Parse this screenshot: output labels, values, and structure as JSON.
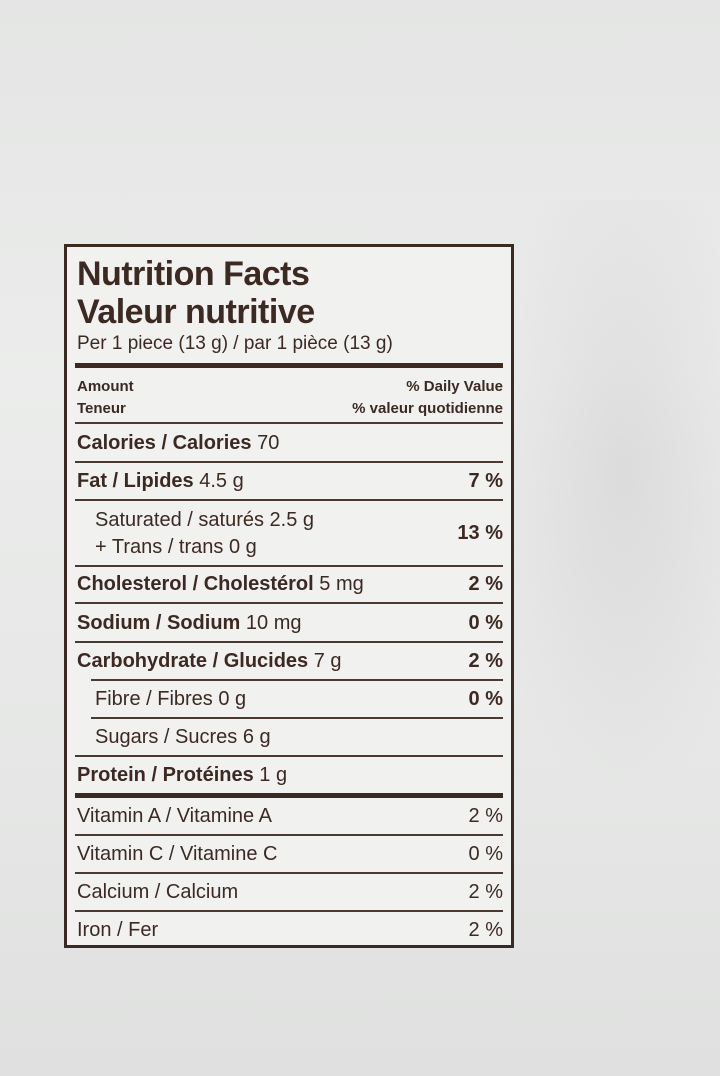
{
  "title_en": "Nutrition Facts",
  "title_fr": "Valeur nutritive",
  "serving": "Per 1 piece (13 g) / par 1 pièce (13 g)",
  "header": {
    "amount_en": "Amount",
    "amount_fr": "Teneur",
    "dv_en": "% Daily Value",
    "dv_fr": "% valeur quotidienne"
  },
  "calories": {
    "label": "Calories / Calories",
    "value": "70"
  },
  "fat": {
    "label": "Fat / Lipides",
    "value": "4.5 g",
    "dv": "7 %"
  },
  "saturated": {
    "label": "Saturated / saturés",
    "value": "2.5 g"
  },
  "trans": {
    "label": "+ Trans / trans",
    "value": "0 g"
  },
  "sat_trans_dv": "13 %",
  "cholesterol": {
    "label": "Cholesterol / Cholestérol",
    "value": "5 mg",
    "dv": "2 %"
  },
  "sodium": {
    "label": "Sodium / Sodium",
    "value": "10 mg",
    "dv": "0 %"
  },
  "carbohydrate": {
    "label": "Carbohydrate / Glucides",
    "value": "7 g",
    "dv": "2 %"
  },
  "fibre": {
    "label": "Fibre / Fibres",
    "value": "0 g",
    "dv": "0 %"
  },
  "sugars": {
    "label": "Sugars / Sucres",
    "value": "6 g"
  },
  "protein": {
    "label": "Protein / Protéines",
    "value": "1 g"
  },
  "vitamin_a": {
    "label": "Vitamin A / Vitamine A",
    "dv": "2 %"
  },
  "vitamin_c": {
    "label": "Vitamin C / Vitamine C",
    "dv": "0 %"
  },
  "calcium": {
    "label": "Calcium / Calcium",
    "dv": "2 %"
  },
  "iron": {
    "label": "Iron / Fer",
    "dv": "2 %"
  }
}
